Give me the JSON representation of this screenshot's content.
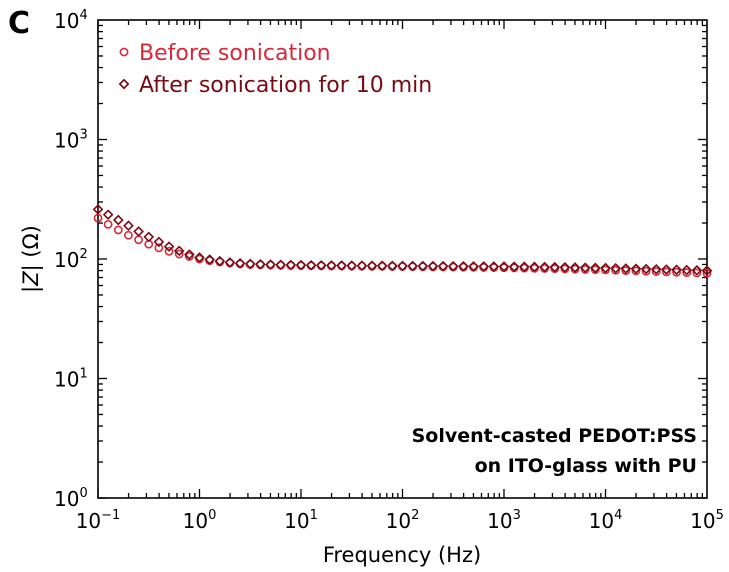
{
  "panel_label": "C",
  "colors": {
    "before": "#d62839",
    "after": "#7a0a14",
    "axis": "#000000"
  },
  "chart_data": {
    "type": "scatter",
    "xscale": "log",
    "yscale": "log",
    "xlim": [
      0.1,
      100000
    ],
    "ylim": [
      1,
      10000
    ],
    "xlabel": "Frequency (Hz)",
    "ylabel_parts": [
      "|",
      "Z",
      "| (Ω)"
    ],
    "xticks": [
      {
        "base": "10",
        "exp": "−1",
        "value": 0.1
      },
      {
        "base": "10",
        "exp": "0",
        "value": 1
      },
      {
        "base": "10",
        "exp": "1",
        "value": 10
      },
      {
        "base": "10",
        "exp": "2",
        "value": 100
      },
      {
        "base": "10",
        "exp": "3",
        "value": 1000
      },
      {
        "base": "10",
        "exp": "4",
        "value": 10000
      },
      {
        "base": "10",
        "exp": "5",
        "value": 100000
      }
    ],
    "yticks": [
      {
        "base": "10",
        "exp": "0",
        "value": 1
      },
      {
        "base": "10",
        "exp": "1",
        "value": 10
      },
      {
        "base": "10",
        "exp": "2",
        "value": 100
      },
      {
        "base": "10",
        "exp": "3",
        "value": 1000
      },
      {
        "base": "10",
        "exp": "4",
        "value": 10000
      }
    ],
    "legend_position": "top-left",
    "grid": false,
    "annotation": [
      "Solvent-casted PEDOT:PSS",
      "on ITO-glass with PU"
    ],
    "x": [
      0.1,
      0.1259,
      0.1585,
      0.1995,
      0.2512,
      0.3162,
      0.3981,
      0.5012,
      0.631,
      0.7943,
      1,
      1.2589,
      1.5849,
      1.9953,
      2.5119,
      3.1623,
      3.9811,
      5.0119,
      6.3096,
      7.9433,
      10,
      12.589,
      15.849,
      19.953,
      25.119,
      31.623,
      39.811,
      50.119,
      63.096,
      79.433,
      100,
      125.89,
      158.49,
      199.53,
      251.19,
      316.23,
      398.11,
      501.19,
      630.96,
      794.33,
      1000,
      1258.9,
      1584.9,
      1995.3,
      2511.9,
      3162.3,
      3981.1,
      5011.9,
      6309.6,
      7943.3,
      10000,
      12589,
      15849,
      19953,
      25119,
      31623,
      39811,
      50119,
      63096,
      79433,
      100000
    ],
    "series": [
      {
        "name": "Before sonication",
        "marker": "circle",
        "color": "#d62839",
        "values": [
          220,
          195,
          175,
          158,
          145,
          133,
          124,
          116,
          110,
          105,
          100,
          97,
          94.5,
          92.5,
          91,
          90,
          89.5,
          89,
          88.7,
          88.4,
          88.2,
          88,
          87.8,
          87.6,
          87.5,
          87.3,
          87.2,
          87,
          86.9,
          86.7,
          86.5,
          86.3,
          86.2,
          86,
          85.8,
          85.6,
          85.4,
          85.2,
          85,
          84.8,
          84.5,
          84.2,
          83.9,
          83.6,
          83.3,
          83,
          82.6,
          82.2,
          81.8,
          81.4,
          81,
          80.5,
          80,
          79.5,
          79,
          78.5,
          78,
          77.5,
          77,
          76.5,
          76
        ]
      },
      {
        "name": "After sonication for 10 min",
        "marker": "diamond",
        "color": "#7a0a14",
        "values": [
          260,
          235,
          212,
          190,
          170,
          153,
          139,
          127,
          117,
          109,
          103,
          99,
          96,
          93.5,
          92,
          91,
          90.3,
          89.8,
          89.4,
          89.1,
          88.9,
          88.7,
          88.5,
          88.3,
          88.2,
          88,
          87.9,
          87.8,
          87.7,
          87.6,
          87.5,
          87.4,
          87.3,
          87.2,
          87.1,
          87,
          86.9,
          86.8,
          86.7,
          86.6,
          86.5,
          86.3,
          86.1,
          85.9,
          85.7,
          85.5,
          85.2,
          84.9,
          84.6,
          84.3,
          84,
          83.6,
          83.2,
          82.8,
          82.4,
          82,
          81.6,
          81.2,
          80.8,
          80.4,
          80
        ]
      }
    ]
  }
}
